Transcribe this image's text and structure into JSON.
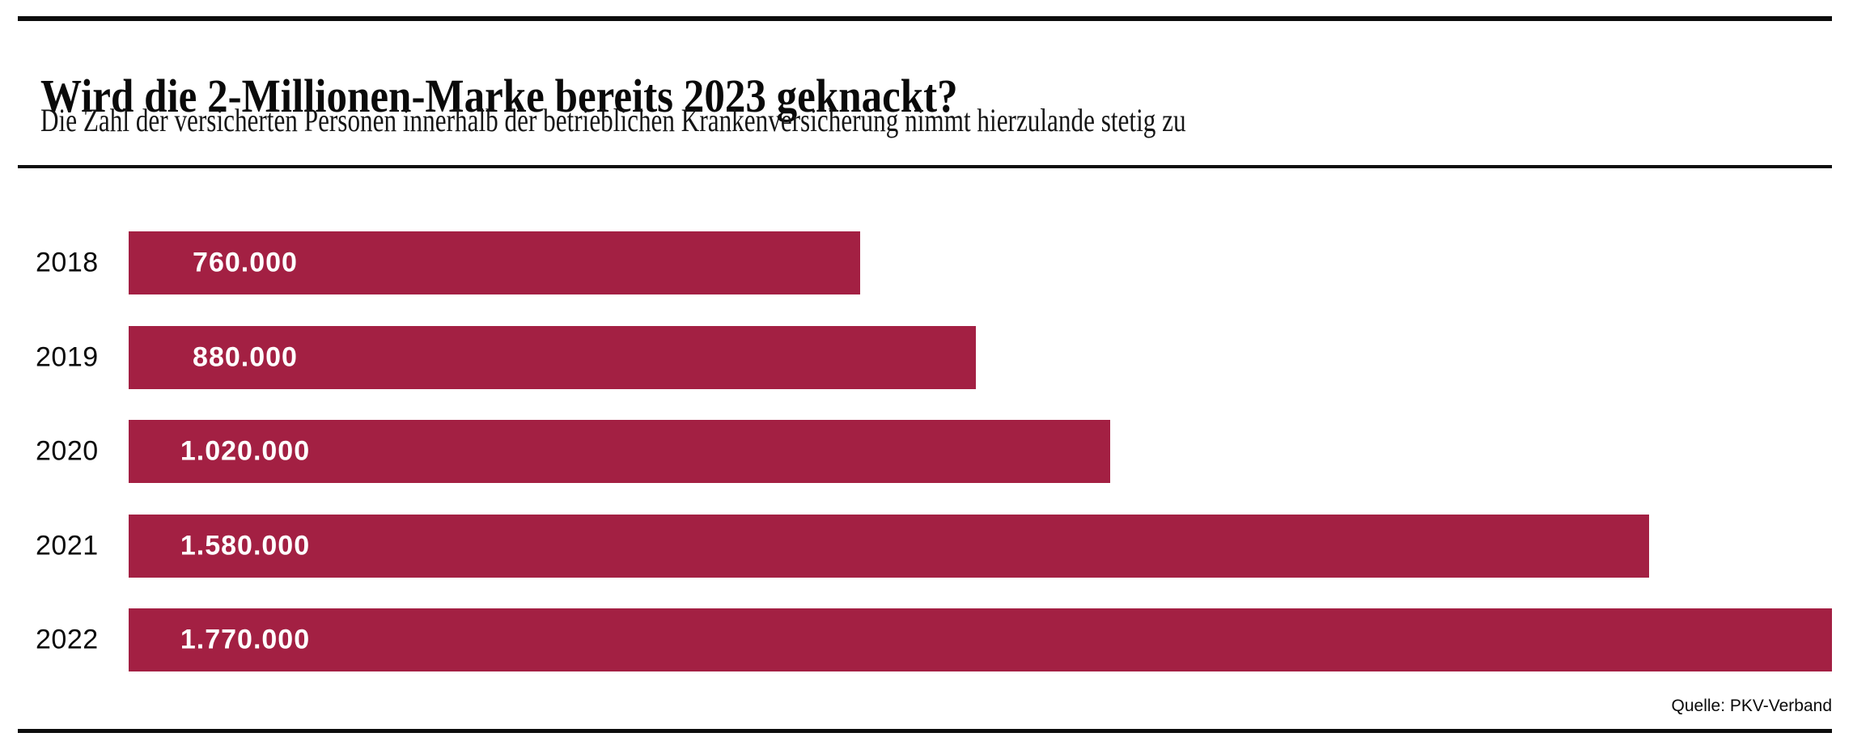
{
  "header": {
    "title": "Wird die 2-Millionen-Marke bereits 2023 geknackt?",
    "subtitle": "Die Zahl der versicherten Personen innerhalb der betrieblichen Krankenversicherung nimmt hierzulande stetig zu"
  },
  "source_label": "Quelle: PKV-Verband",
  "colors": {
    "bar": "#A32043",
    "value_label": "#FFFFFF",
    "text": "#0A0A0A",
    "rule": "#0D0D0D",
    "background": "#FFFFFF"
  },
  "chart_data": {
    "type": "bar",
    "orientation": "horizontal",
    "title": "Wird die 2-Millionen-Marke bereits 2023 geknackt?",
    "subtitle": "Die Zahl der versicherten Personen innerhalb der betrieblichen Krankenversicherung nimmt hierzulande stetig zu",
    "source": "Quelle: PKV-Verband",
    "categories": [
      "2018",
      "2019",
      "2020",
      "2021",
      "2022"
    ],
    "values": [
      760000,
      880000,
      1020000,
      1580000,
      1770000
    ],
    "value_labels": [
      "760.000",
      "880.000",
      "1.020.000",
      "1.580.000",
      "1.770.000"
    ],
    "xlabel": "",
    "ylabel": "",
    "xlim": [
      0,
      1770000
    ],
    "grid": false,
    "legend": false,
    "bar_color": "#A32043",
    "value_labels_inside_bars": true
  }
}
